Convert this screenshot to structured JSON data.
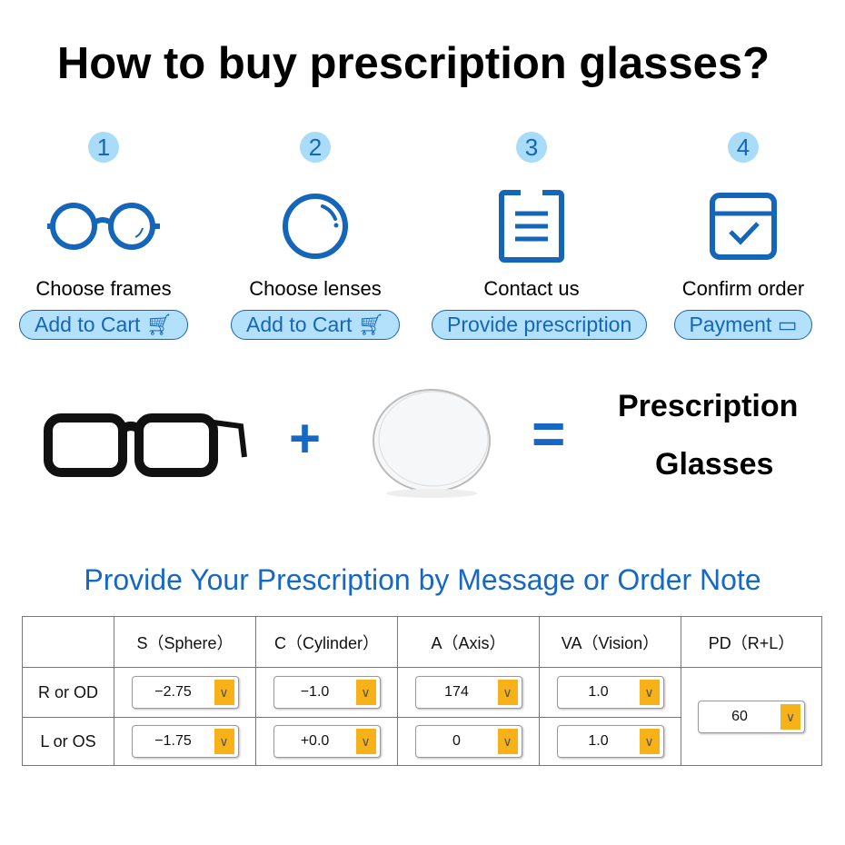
{
  "title": "How to buy prescription glasses?",
  "steps": [
    {
      "number": "1",
      "label": "Choose frames",
      "button": "Add to Cart",
      "icon": "round-glasses-icon",
      "button_icon": "cart-icon"
    },
    {
      "number": "2",
      "label": "Choose lenses",
      "button": "Add to Cart",
      "icon": "lens-icon",
      "button_icon": "cart-icon"
    },
    {
      "number": "3",
      "label": "Contact us",
      "button": "Provide prescription",
      "icon": "clipboard-icon"
    },
    {
      "number": "4",
      "label": "Confirm order",
      "button": "Payment",
      "icon": "box-check-icon",
      "button_icon": "card-icon"
    }
  ],
  "equation": {
    "plus": "+",
    "equals": "=",
    "result_line1": "Prescription",
    "result_line2": "Glasses"
  },
  "subtitle": "Provide Your Prescription by Message or Order Note",
  "table": {
    "headers": [
      "",
      "S（Sphere）",
      "C（Cylinder）",
      "A（Axis）",
      "VA（Vision）",
      "PD（R+L）"
    ],
    "rows": [
      {
        "label": "R or OD",
        "values": [
          "−2.75",
          "−1.0",
          "174",
          "1.0"
        ]
      },
      {
        "label": "L or OS",
        "values": [
          "−1.75",
          "+0.0",
          "0",
          "1.0"
        ]
      }
    ],
    "pd": "60"
  },
  "colors": {
    "accent": "#1565b8",
    "button_bg": "#b3e1fb",
    "dropdown": "#f7b21a"
  }
}
